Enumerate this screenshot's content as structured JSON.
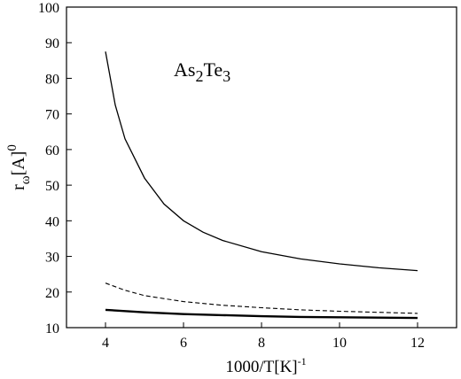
{
  "chart_data": {
    "type": "line",
    "annotation": {
      "base1": "As",
      "sub1": "2",
      "base2": "Te",
      "sub2": "3"
    },
    "xlabel": {
      "text": "1000/T[K]",
      "sup": "-1"
    },
    "ylabel": {
      "base": "r",
      "sub": "ω",
      "bracket": "[A]",
      "sup": "0"
    },
    "xlim": [
      3,
      13
    ],
    "ylim": [
      10,
      100
    ],
    "xticks": [
      4,
      6,
      8,
      10,
      12
    ],
    "yticks": [
      10,
      20,
      30,
      40,
      50,
      60,
      70,
      80,
      90,
      100
    ],
    "grid": false,
    "legend": "none",
    "series": [
      {
        "style": "solid-thin",
        "color": "#000000",
        "x": [
          4.0,
          4.25,
          4.5,
          5.0,
          5.5,
          6.0,
          6.5,
          7.0,
          8.0,
          9.0,
          10.0,
          11.0,
          12.0
        ],
        "y": [
          87.5,
          72.5,
          63.0,
          52.0,
          44.7,
          40.0,
          36.8,
          34.5,
          31.3,
          29.3,
          27.9,
          26.8,
          26.0
        ]
      },
      {
        "style": "dashed",
        "color": "#000000",
        "x": [
          4.0,
          4.5,
          5.0,
          6.0,
          7.0,
          8.0,
          9.0,
          10.0,
          11.0,
          12.0
        ],
        "y": [
          22.5,
          20.5,
          19.0,
          17.3,
          16.3,
          15.6,
          15.0,
          14.6,
          14.3,
          14.0
        ]
      },
      {
        "style": "solid-thick",
        "color": "#000000",
        "x": [
          4.0,
          5.0,
          6.0,
          7.0,
          8.0,
          9.0,
          10.0,
          11.0,
          12.0
        ],
        "y": [
          15.0,
          14.3,
          13.8,
          13.5,
          13.2,
          13.0,
          12.9,
          12.8,
          12.7
        ]
      }
    ]
  }
}
